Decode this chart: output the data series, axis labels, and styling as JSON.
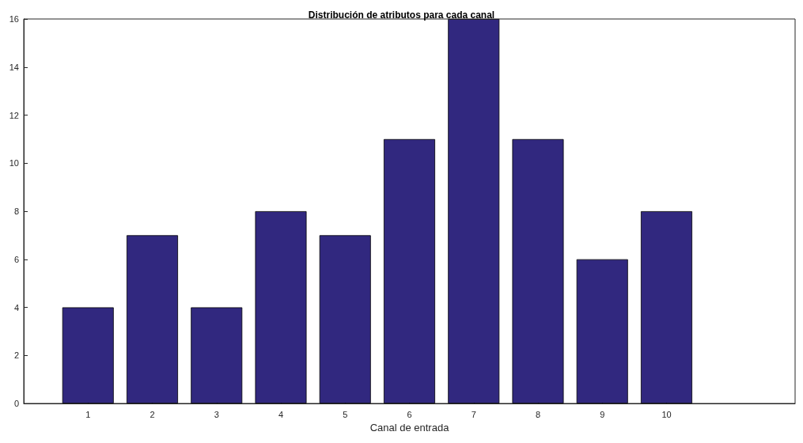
{
  "chart_data": {
    "type": "bar",
    "title": "Distribución de atributos para cada canal",
    "xlabel": "Canal de entrada",
    "x": [
      1,
      2,
      3,
      4,
      5,
      6,
      7,
      8,
      9,
      10
    ],
    "values": [
      4,
      7,
      4,
      8,
      7,
      11,
      16,
      11,
      6,
      8
    ],
    "color": "#31287f",
    "xlim": [
      0,
      12
    ],
    "xticks": [
      1,
      2,
      3,
      4,
      5,
      6,
      7,
      8,
      9,
      10
    ],
    "ylim": [
      0,
      16
    ],
    "yticks": [
      0,
      2,
      4,
      6,
      8,
      10,
      12,
      14,
      16
    ],
    "grid": false
  }
}
